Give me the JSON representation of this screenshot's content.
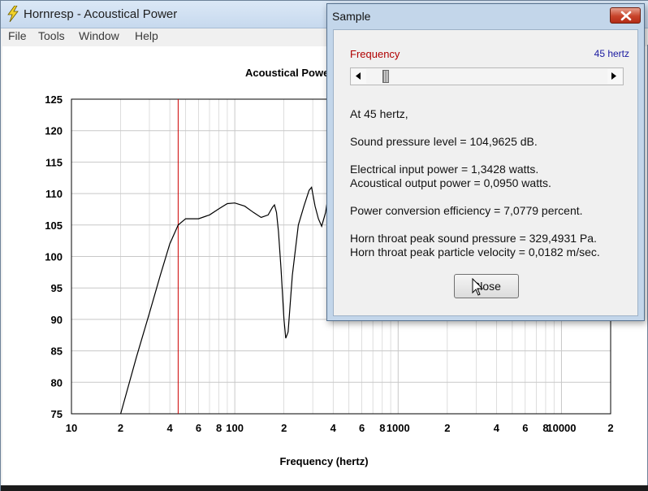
{
  "window": {
    "title": "Hornresp - Acoustical Power",
    "menu": [
      "File",
      "Tools",
      "Window",
      "Help"
    ]
  },
  "chart_data": {
    "type": "line",
    "title": "Acoustical Power",
    "xlabel": "Frequency (hertz)",
    "ylabel": "",
    "x_scale": "log",
    "xlim": [
      10,
      20000
    ],
    "ylim": [
      75,
      125
    ],
    "y_ticks": [
      "125",
      "120",
      "115",
      "110",
      "105",
      "100",
      "95",
      "90",
      "85",
      "80",
      "75"
    ],
    "x_tick_labels": [
      {
        "x": 10,
        "label": "10"
      },
      {
        "x": 20,
        "label": "2"
      },
      {
        "x": 40,
        "label": "4"
      },
      {
        "x": 60,
        "label": "6"
      },
      {
        "x": 80,
        "label": "8"
      },
      {
        "x": 100,
        "label": "100"
      },
      {
        "x": 200,
        "label": "2"
      },
      {
        "x": 400,
        "label": "4"
      },
      {
        "x": 600,
        "label": "6"
      },
      {
        "x": 800,
        "label": "8"
      },
      {
        "x": 1000,
        "label": "1000"
      },
      {
        "x": 2000,
        "label": "2"
      },
      {
        "x": 4000,
        "label": "4"
      },
      {
        "x": 6000,
        "label": "6"
      },
      {
        "x": 8000,
        "label": "8"
      },
      {
        "x": 10000,
        "label": "10000"
      },
      {
        "x": 20000,
        "label": "2"
      }
    ],
    "grid": true,
    "marker_x": 45,
    "series": [
      {
        "color": "#000000",
        "points": [
          [
            20,
            75
          ],
          [
            25,
            84
          ],
          [
            30,
            91
          ],
          [
            35,
            97
          ],
          [
            40,
            102
          ],
          [
            45,
            105
          ],
          [
            50,
            106
          ],
          [
            60,
            106
          ],
          [
            70,
            106.6
          ],
          [
            80,
            107.6
          ],
          [
            90,
            108.4
          ],
          [
            100,
            108.5
          ],
          [
            115,
            108
          ],
          [
            130,
            107
          ],
          [
            145,
            106.2
          ],
          [
            160,
            106.6
          ],
          [
            170,
            107.8
          ],
          [
            175,
            108.2
          ],
          [
            180,
            107
          ],
          [
            185,
            104
          ],
          [
            192,
            98
          ],
          [
            200,
            90
          ],
          [
            205,
            87
          ],
          [
            212,
            88
          ],
          [
            225,
            97
          ],
          [
            245,
            105
          ],
          [
            265,
            108
          ],
          [
            285,
            110.5
          ],
          [
            295,
            111
          ],
          [
            310,
            108
          ],
          [
            325,
            106
          ],
          [
            340,
            104.8
          ],
          [
            360,
            107
          ],
          [
            375,
            110
          ],
          [
            390,
            111
          ]
        ]
      }
    ]
  },
  "sample": {
    "title": "Sample",
    "frequency_label": "Frequency",
    "frequency_value": "45 hertz",
    "slider_value": 45,
    "lines": {
      "at": "At 45 hertz,",
      "spl": "Sound pressure level = 104,9625 dB.",
      "input_power": "Electrical input power = 1,3428 watts.",
      "output_power": "Acoustical output power = 0,0950 watts.",
      "efficiency": "Power conversion efficiency = 7,0779 percent.",
      "throat_pressure": "Horn throat peak sound pressure = 329,4931 Pa.",
      "throat_velocity": "Horn throat peak particle velocity = 0,0182 m/sec."
    },
    "close_label": "Close"
  },
  "colors": {
    "marker": "#cc0000",
    "curve": "#000000",
    "grid": "#c8c8c8"
  },
  "icons": {
    "app": "lightning-icon",
    "close": "close-x-icon"
  }
}
